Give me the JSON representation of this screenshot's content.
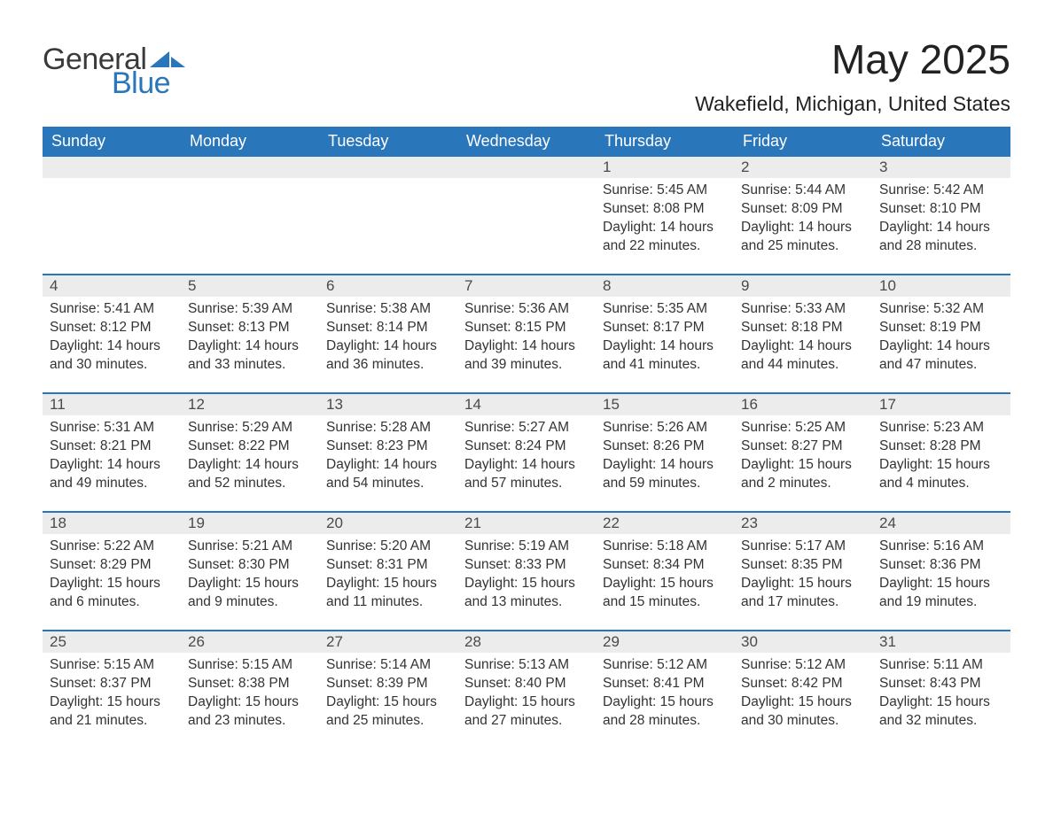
{
  "brand": {
    "word1": "General",
    "word2": "Blue",
    "accent_color": "#2a76bb",
    "text_color": "#3a3a3a"
  },
  "header": {
    "month_title": "May 2025",
    "location": "Wakefield, Michigan, United States"
  },
  "styling": {
    "page_background": "#ffffff",
    "header_bar_color": "#2a76bb",
    "header_bar_text_color": "#ffffff",
    "week_separator_color": "#2a76bb",
    "daynum_bar_background": "#ececec",
    "body_text_color": "#333333",
    "month_title_fontsize": 46,
    "location_fontsize": 23,
    "weekday_fontsize": 18,
    "daynum_fontsize": 17,
    "cell_fontsize": 15.5
  },
  "calendar": {
    "type": "table",
    "weekdays": [
      "Sunday",
      "Monday",
      "Tuesday",
      "Wednesday",
      "Thursday",
      "Friday",
      "Saturday"
    ],
    "leading_blanks": 4,
    "days": [
      {
        "n": 1,
        "sunrise": "5:45 AM",
        "sunset": "8:08 PM",
        "daylight": "14 hours and 22 minutes."
      },
      {
        "n": 2,
        "sunrise": "5:44 AM",
        "sunset": "8:09 PM",
        "daylight": "14 hours and 25 minutes."
      },
      {
        "n": 3,
        "sunrise": "5:42 AM",
        "sunset": "8:10 PM",
        "daylight": "14 hours and 28 minutes."
      },
      {
        "n": 4,
        "sunrise": "5:41 AM",
        "sunset": "8:12 PM",
        "daylight": "14 hours and 30 minutes."
      },
      {
        "n": 5,
        "sunrise": "5:39 AM",
        "sunset": "8:13 PM",
        "daylight": "14 hours and 33 minutes."
      },
      {
        "n": 6,
        "sunrise": "5:38 AM",
        "sunset": "8:14 PM",
        "daylight": "14 hours and 36 minutes."
      },
      {
        "n": 7,
        "sunrise": "5:36 AM",
        "sunset": "8:15 PM",
        "daylight": "14 hours and 39 minutes."
      },
      {
        "n": 8,
        "sunrise": "5:35 AM",
        "sunset": "8:17 PM",
        "daylight": "14 hours and 41 minutes."
      },
      {
        "n": 9,
        "sunrise": "5:33 AM",
        "sunset": "8:18 PM",
        "daylight": "14 hours and 44 minutes."
      },
      {
        "n": 10,
        "sunrise": "5:32 AM",
        "sunset": "8:19 PM",
        "daylight": "14 hours and 47 minutes."
      },
      {
        "n": 11,
        "sunrise": "5:31 AM",
        "sunset": "8:21 PM",
        "daylight": "14 hours and 49 minutes."
      },
      {
        "n": 12,
        "sunrise": "5:29 AM",
        "sunset": "8:22 PM",
        "daylight": "14 hours and 52 minutes."
      },
      {
        "n": 13,
        "sunrise": "5:28 AM",
        "sunset": "8:23 PM",
        "daylight": "14 hours and 54 minutes."
      },
      {
        "n": 14,
        "sunrise": "5:27 AM",
        "sunset": "8:24 PM",
        "daylight": "14 hours and 57 minutes."
      },
      {
        "n": 15,
        "sunrise": "5:26 AM",
        "sunset": "8:26 PM",
        "daylight": "14 hours and 59 minutes."
      },
      {
        "n": 16,
        "sunrise": "5:25 AM",
        "sunset": "8:27 PM",
        "daylight": "15 hours and 2 minutes."
      },
      {
        "n": 17,
        "sunrise": "5:23 AM",
        "sunset": "8:28 PM",
        "daylight": "15 hours and 4 minutes."
      },
      {
        "n": 18,
        "sunrise": "5:22 AM",
        "sunset": "8:29 PM",
        "daylight": "15 hours and 6 minutes."
      },
      {
        "n": 19,
        "sunrise": "5:21 AM",
        "sunset": "8:30 PM",
        "daylight": "15 hours and 9 minutes."
      },
      {
        "n": 20,
        "sunrise": "5:20 AM",
        "sunset": "8:31 PM",
        "daylight": "15 hours and 11 minutes."
      },
      {
        "n": 21,
        "sunrise": "5:19 AM",
        "sunset": "8:33 PM",
        "daylight": "15 hours and 13 minutes."
      },
      {
        "n": 22,
        "sunrise": "5:18 AM",
        "sunset": "8:34 PM",
        "daylight": "15 hours and 15 minutes."
      },
      {
        "n": 23,
        "sunrise": "5:17 AM",
        "sunset": "8:35 PM",
        "daylight": "15 hours and 17 minutes."
      },
      {
        "n": 24,
        "sunrise": "5:16 AM",
        "sunset": "8:36 PM",
        "daylight": "15 hours and 19 minutes."
      },
      {
        "n": 25,
        "sunrise": "5:15 AM",
        "sunset": "8:37 PM",
        "daylight": "15 hours and 21 minutes."
      },
      {
        "n": 26,
        "sunrise": "5:15 AM",
        "sunset": "8:38 PM",
        "daylight": "15 hours and 23 minutes."
      },
      {
        "n": 27,
        "sunrise": "5:14 AM",
        "sunset": "8:39 PM",
        "daylight": "15 hours and 25 minutes."
      },
      {
        "n": 28,
        "sunrise": "5:13 AM",
        "sunset": "8:40 PM",
        "daylight": "15 hours and 27 minutes."
      },
      {
        "n": 29,
        "sunrise": "5:12 AM",
        "sunset": "8:41 PM",
        "daylight": "15 hours and 28 minutes."
      },
      {
        "n": 30,
        "sunrise": "5:12 AM",
        "sunset": "8:42 PM",
        "daylight": "15 hours and 30 minutes."
      },
      {
        "n": 31,
        "sunrise": "5:11 AM",
        "sunset": "8:43 PM",
        "daylight": "15 hours and 32 minutes."
      }
    ],
    "labels": {
      "sunrise_prefix": "Sunrise: ",
      "sunset_prefix": "Sunset: ",
      "daylight_prefix": "Daylight: "
    }
  }
}
